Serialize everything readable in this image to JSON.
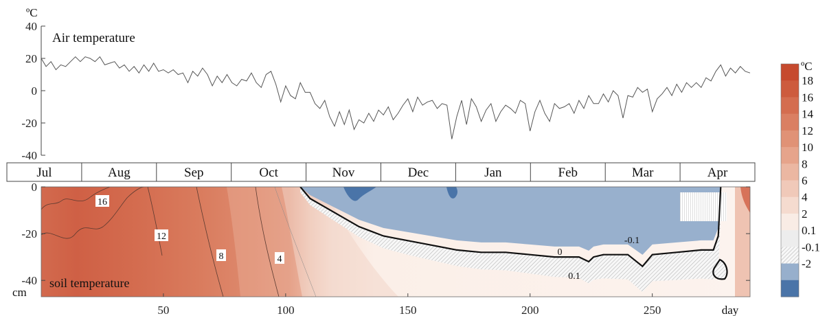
{
  "chart_data": [
    {
      "type": "line",
      "title": "Air temperature",
      "unit": "ºC",
      "xlabel": "",
      "ylabel": "",
      "xlim": [
        0,
        290
      ],
      "ylim": [
        -40,
        40
      ],
      "yticks": [
        "40",
        "20",
        "0",
        "-20",
        "-40"
      ],
      "grid": false,
      "series": [
        {
          "color": "#555555",
          "x": [
            0,
            2,
            4,
            6,
            8,
            10,
            12,
            14,
            16,
            18,
            20,
            22,
            24,
            26,
            28,
            30,
            32,
            34,
            36,
            38,
            40,
            42,
            44,
            46,
            48,
            50,
            52,
            54,
            56,
            58,
            60,
            62,
            64,
            66,
            68,
            70,
            72,
            74,
            76,
            78,
            80,
            82,
            84,
            86,
            88,
            90,
            92,
            94,
            96,
            98,
            100,
            102,
            104,
            106,
            108,
            110,
            112,
            114,
            116,
            118,
            120,
            122,
            124,
            126,
            128,
            130,
            132,
            134,
            136,
            138,
            140,
            142,
            144,
            146,
            148,
            150,
            152,
            154,
            156,
            158,
            160,
            162,
            164,
            166,
            168,
            170,
            172,
            174,
            176,
            178,
            180,
            182,
            184,
            186,
            188,
            190,
            192,
            194,
            196,
            198,
            200,
            202,
            204,
            206,
            208,
            210,
            212,
            214,
            216,
            218,
            220,
            222,
            224,
            226,
            228,
            230,
            232,
            234,
            236,
            238,
            240,
            242,
            244,
            246,
            248,
            250,
            252,
            254,
            256,
            258,
            260,
            262,
            264,
            266,
            268,
            270,
            272,
            274,
            276,
            278,
            280,
            282,
            284,
            286,
            288,
            290
          ],
          "values": [
            20,
            15,
            18,
            13,
            16,
            15,
            18,
            21,
            18,
            21,
            20,
            18,
            21,
            16,
            17,
            18,
            14,
            16,
            12,
            15,
            11,
            16,
            12,
            17,
            12,
            13,
            11,
            13,
            10,
            11,
            5,
            12,
            9,
            14,
            10,
            3,
            9,
            5,
            10,
            5,
            3,
            7,
            6,
            11,
            5,
            2,
            10,
            12,
            4,
            -7,
            3,
            -3,
            -5,
            5,
            -1,
            -1,
            -8,
            -11,
            -6,
            -16,
            -22,
            -13,
            -21,
            -12,
            -24,
            -18,
            -20,
            -14,
            -19,
            -12,
            -15,
            -10,
            -18,
            -14,
            -9,
            -5,
            -13,
            -4,
            -9,
            -7,
            -6,
            -11,
            -8,
            -9,
            -30,
            -16,
            -6,
            -21,
            -5,
            -10,
            -19,
            -12,
            -8,
            -19,
            -13,
            -9,
            -11,
            -14,
            -6,
            -8,
            -25,
            -13,
            -6,
            -14,
            -19,
            -8,
            -11,
            -10,
            -8,
            -14,
            -6,
            -11,
            -3,
            -8,
            -8,
            -2,
            -7,
            0,
            -3,
            -17,
            -3,
            -4,
            2,
            -1,
            1,
            -13,
            -5,
            -2,
            2,
            -3,
            4,
            -1,
            5,
            2,
            5,
            2,
            8,
            6,
            12,
            16,
            9,
            14,
            11,
            15,
            12,
            11
          ]
        }
      ]
    },
    {
      "type": "heatmap",
      "title": "soil temperature",
      "xlabel": "day",
      "ylabel": "cm",
      "xlim": [
        0,
        290
      ],
      "ylim": [
        -47,
        0
      ],
      "xticks": [
        "50",
        "100",
        "150",
        "200",
        "250"
      ],
      "yticks": [
        "0",
        "-20",
        "-40"
      ],
      "months": [
        "Jul",
        "Aug",
        "Sep",
        "Oct",
        "Nov",
        "Dec",
        "Jan",
        "Feb",
        "Mar",
        "Apr"
      ],
      "contour_labels": [
        "16",
        "12",
        "8",
        "4",
        "0",
        "-0.1",
        "0.1"
      ],
      "zero_isotherm": {
        "x": [
          106,
          110,
          115,
          120,
          125,
          130,
          135,
          140,
          145,
          150,
          160,
          170,
          180,
          190,
          200,
          210,
          220,
          224,
          226,
          230,
          240,
          246,
          250,
          260,
          270,
          275,
          277,
          278
        ],
        "depth": [
          0,
          -5,
          -8,
          -11,
          -14,
          -17,
          -19,
          -21,
          -22,
          -23,
          -25,
          -27,
          -28,
          -28,
          -29,
          -30,
          -30,
          -32,
          -30,
          -29,
          -29,
          -34,
          -29,
          -28,
          -27,
          -27,
          -21,
          0
        ]
      },
      "colorbar": {
        "unit": "ºC",
        "levels": [
          "18",
          "16",
          "14",
          "12",
          "10",
          "8",
          "6",
          "4",
          "2",
          "0.1",
          "-0.1",
          "-2"
        ],
        "colors": [
          "#c64a2e",
          "#cd5b3d",
          "#d46d4f",
          "#da7f62",
          "#e09276",
          "#e6a48b",
          "#ebb7a2",
          "#f0c9b9",
          "#f5dbcf",
          "#f9ece5",
          "#ededed",
          "#f4f4f4",
          "#97afcc",
          "#4a74a8"
        ]
      }
    }
  ]
}
